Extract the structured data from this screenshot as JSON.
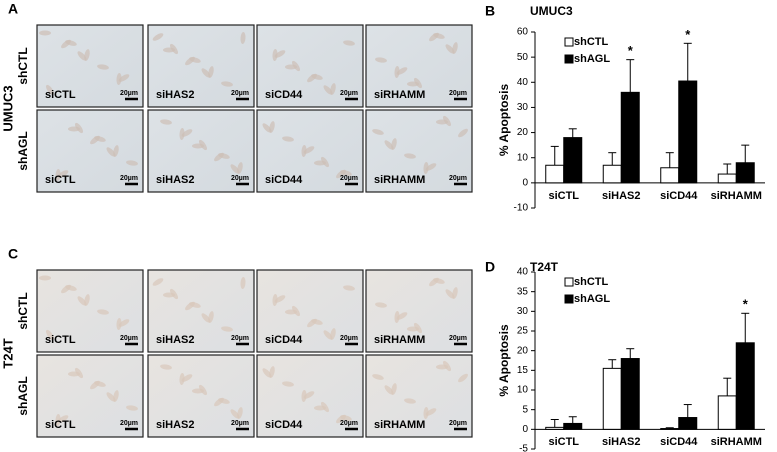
{
  "figure": {
    "panels": [
      {
        "label": "A",
        "cell_line": "UMUC3",
        "rows": [
          "shCTL",
          "shAGL"
        ],
        "columns": [
          "siCTL",
          "siHAS2",
          "siCD44",
          "siRHAMM"
        ],
        "scale_bar": "20µm"
      },
      {
        "label": "C",
        "cell_line": "T24T",
        "rows": [
          "shCTL",
          "shAGL"
        ],
        "columns": [
          "siCTL",
          "siHAS2",
          "siCD44",
          "siRHAMM"
        ],
        "scale_bar": "20µm"
      }
    ]
  },
  "chart_data": [
    {
      "type": "bar",
      "panel_label": "B",
      "title": "UMUC3",
      "y_label": "% Apoptosis",
      "categories": [
        "siCTL",
        "siHAS2",
        "siCD44",
        "siRHAMM"
      ],
      "series": [
        {
          "name": "shCTL",
          "color": "#ffffff",
          "values": [
            7,
            7,
            6,
            3.5
          ],
          "errors": [
            7.5,
            5,
            6,
            4
          ],
          "markers": [
            null,
            null,
            null,
            null
          ]
        },
        {
          "name": "shAGL",
          "color": "#000000",
          "values": [
            18,
            36,
            40.5,
            8
          ],
          "errors": [
            3.5,
            13,
            15,
            7
          ],
          "markers": [
            null,
            "*",
            "*",
            null
          ]
        }
      ],
      "ylim": [
        -10,
        60
      ],
      "yticks": [
        -10,
        0,
        10,
        20,
        30,
        40,
        50,
        60
      ],
      "legend": "top-left"
    },
    {
      "type": "bar",
      "panel_label": "D",
      "title": "T24T",
      "y_label": "% Apoptosis",
      "categories": [
        "siCTL",
        "siHAS2",
        "siCD44",
        "siRHAMM"
      ],
      "series": [
        {
          "name": "shCTL",
          "color": "#ffffff",
          "values": [
            0.5,
            15.5,
            0.2,
            8.5
          ],
          "errors": [
            2,
            2.2,
            0.2,
            4.5
          ],
          "markers": [
            null,
            null,
            null,
            null
          ]
        },
        {
          "name": "shAGL",
          "color": "#000000",
          "values": [
            1.5,
            18,
            3,
            22
          ],
          "errors": [
            1.7,
            2.5,
            3.3,
            7.5
          ],
          "markers": [
            null,
            null,
            null,
            "*"
          ]
        }
      ],
      "ylim": [
        -5,
        40
      ],
      "yticks": [
        -5,
        0,
        5,
        10,
        15,
        20,
        25,
        30,
        35,
        40
      ],
      "legend": "top-left"
    }
  ]
}
